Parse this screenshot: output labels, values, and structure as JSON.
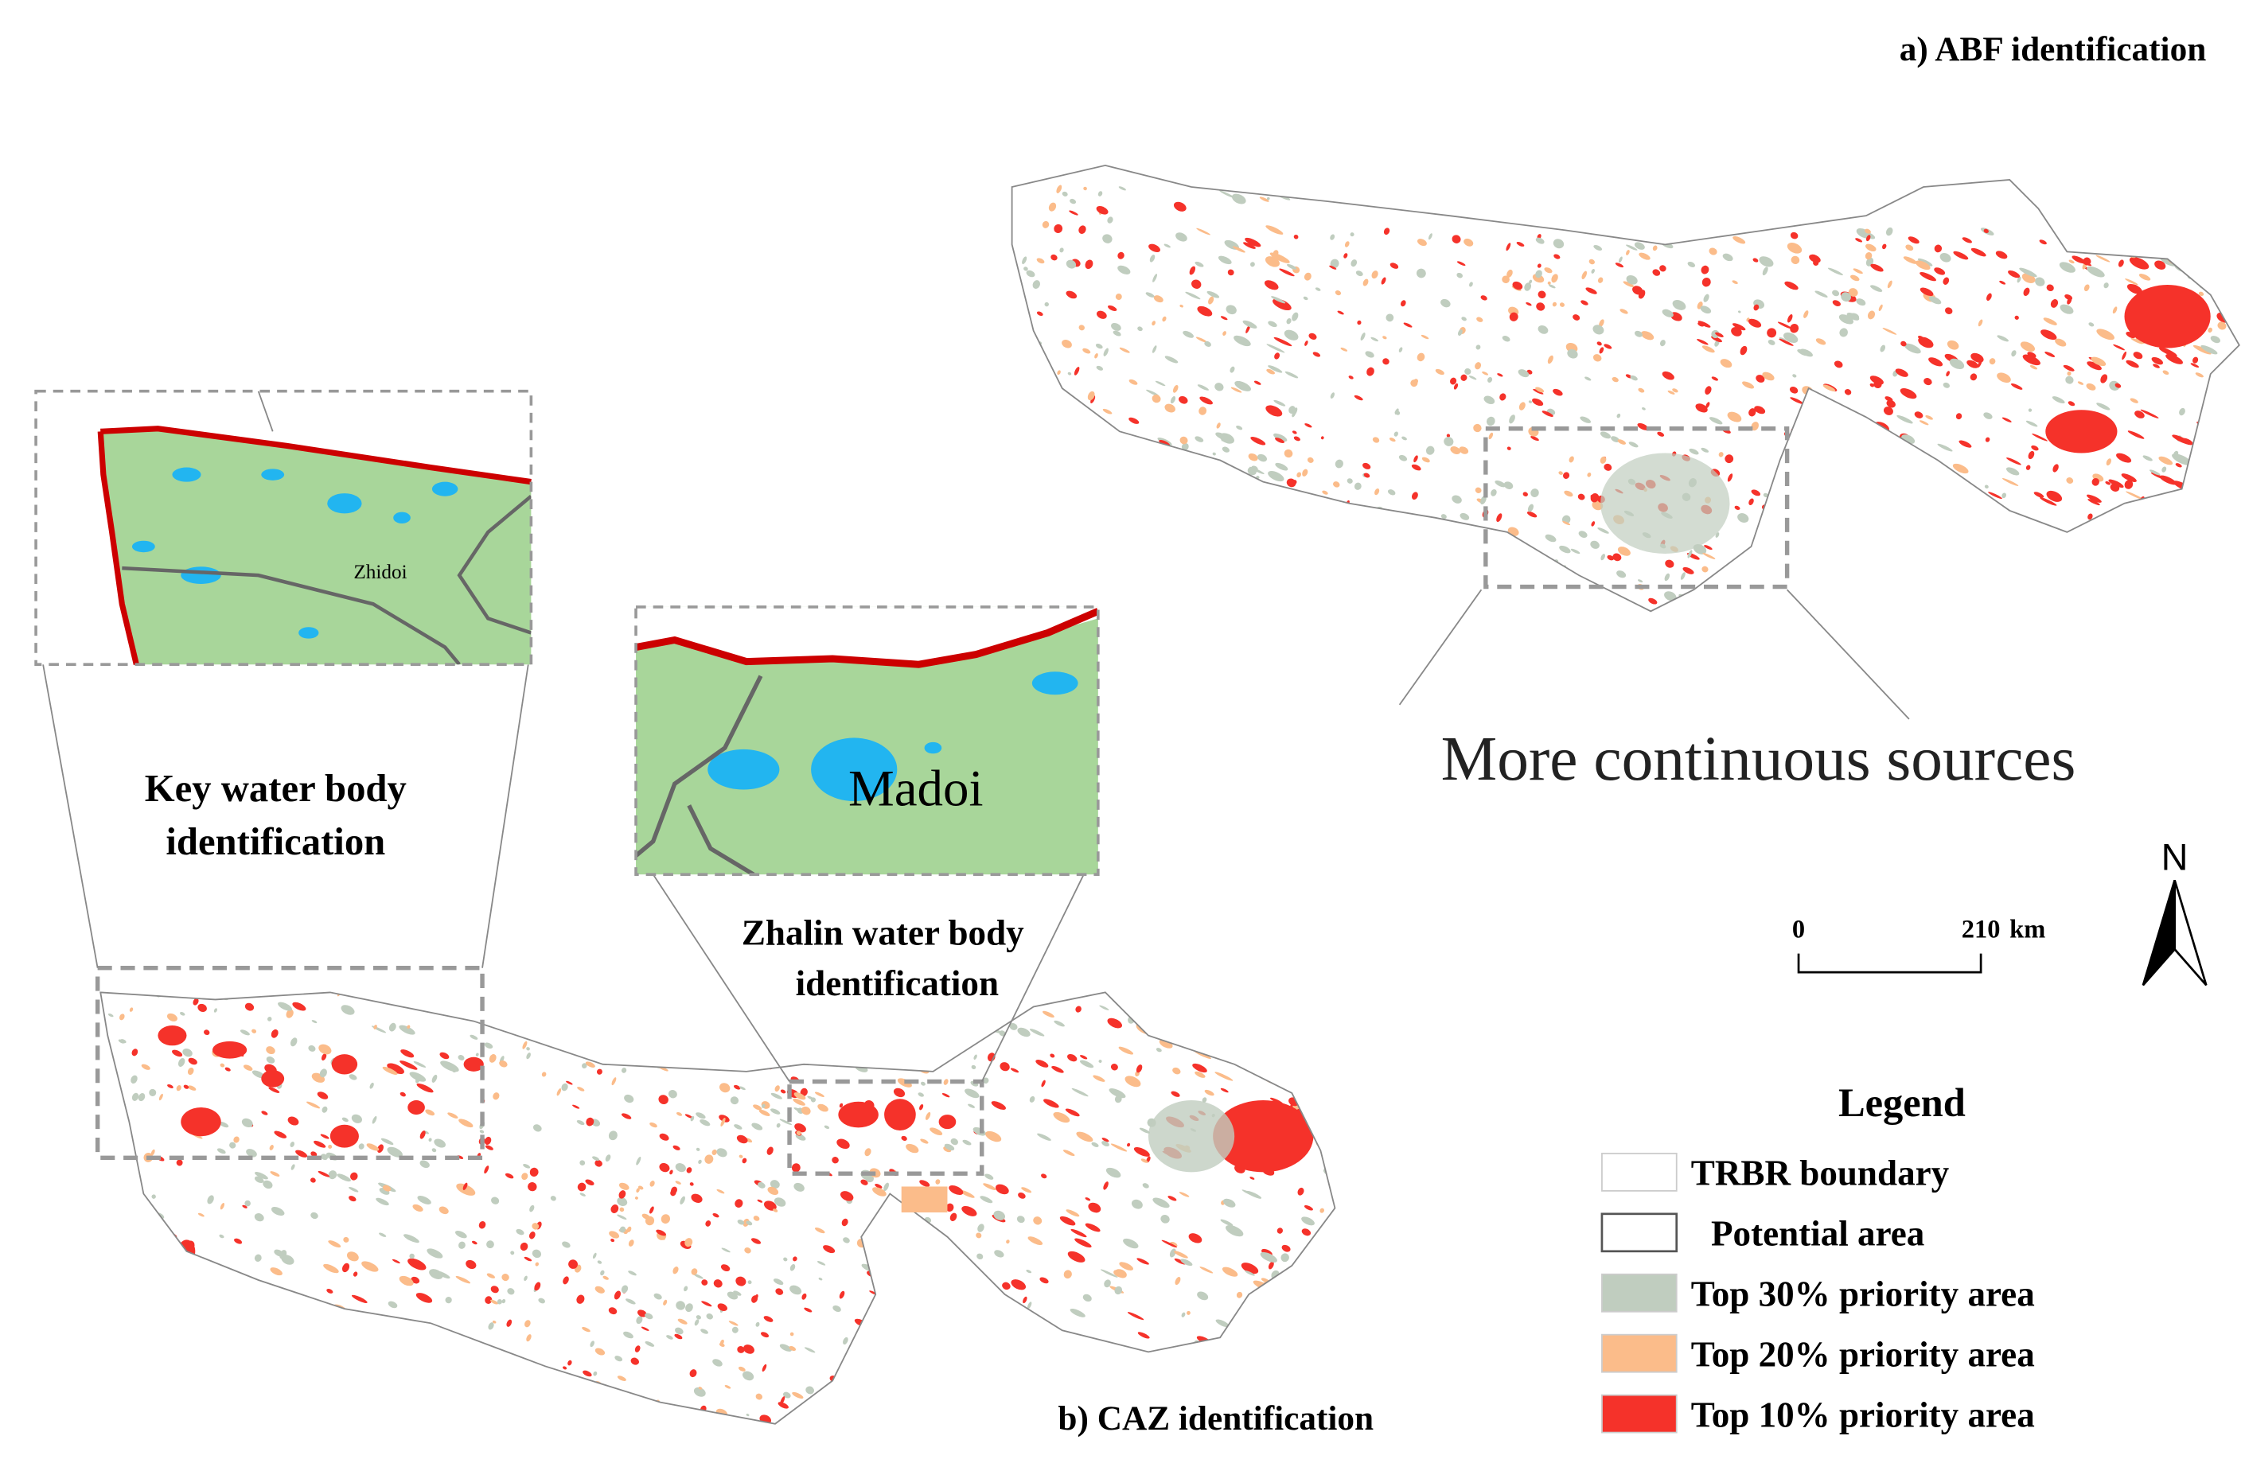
{
  "panels": {
    "abf_title": "a) ABF identification",
    "caz_title": "b) CAZ identification"
  },
  "annotations": {
    "abf_callout": "More continuous sources",
    "key_water": [
      "Key water body",
      "identification"
    ],
    "zhalin_water": [
      "Zhalin water body",
      "identification"
    ]
  },
  "insets": {
    "left_place": "Zhidoi",
    "right_place": "Madoi"
  },
  "scale_bar": {
    "start": "0",
    "end": "210",
    "unit": "km"
  },
  "north_arrow": "N",
  "legend": {
    "title": "Legend",
    "items": [
      {
        "label": "TRBR boundary",
        "color": "#ffffff"
      },
      {
        "label": "Potential area",
        "color": "#ffffff"
      },
      {
        "label": "Top 30% priority area",
        "color": "#c0cdbf"
      },
      {
        "label": "Top 20% priority area",
        "color": "#fbbc8a"
      },
      {
        "label": "Top 10% priority area",
        "color": "#f5322a"
      }
    ]
  }
}
